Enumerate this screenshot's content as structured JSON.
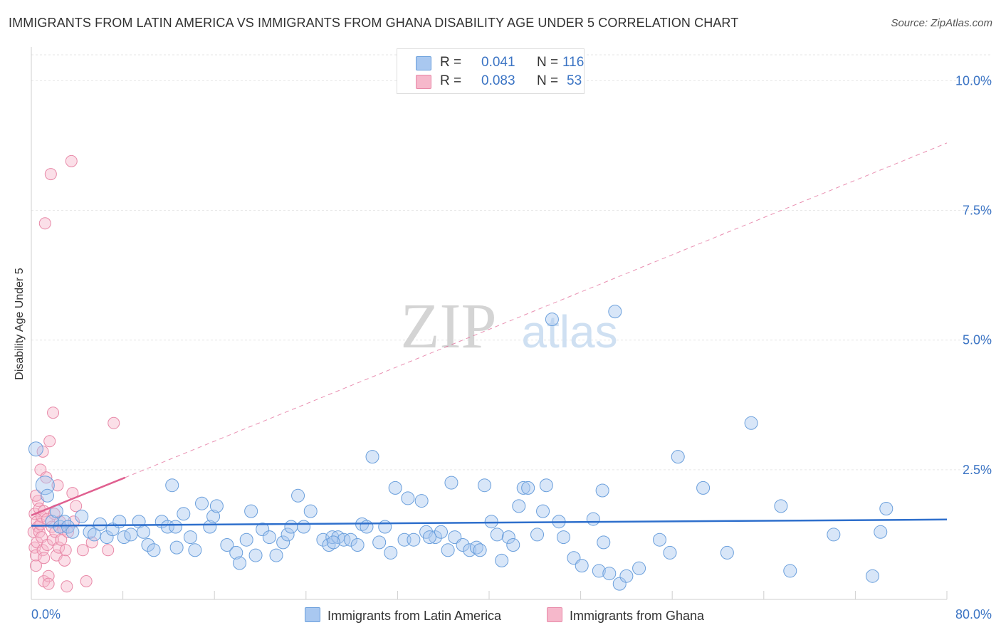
{
  "title": "IMMIGRANTS FROM LATIN AMERICA VS IMMIGRANTS FROM GHANA DISABILITY AGE UNDER 5 CORRELATION CHART",
  "source": "Source: ZipAtlas.com",
  "watermark": {
    "zip": "ZIP",
    "atlas": "atlas"
  },
  "legend": {
    "r_label": "R =",
    "n_label": "N =",
    "series": [
      {
        "name": "Immigrants from Latin America",
        "r": "0.041",
        "n": "116"
      },
      {
        "name": "Immigrants from Ghana",
        "r": "0.083",
        "n": "53"
      }
    ]
  },
  "colors": {
    "blue_fill": "#a9c8f0",
    "blue_stroke": "#6a9fdc",
    "blue_line": "#2e6fcc",
    "pink_fill": "#f6b8cb",
    "pink_stroke": "#e889a8",
    "pink_line": "#e06090",
    "axis_text": "#3b74c4"
  },
  "chart_data": {
    "type": "scatter",
    "title": "IMMIGRANTS FROM LATIN AMERICA VS IMMIGRANTS FROM GHANA DISABILITY AGE UNDER 5 CORRELATION CHART",
    "xlabel": "",
    "ylabel": "Disability Age Under 5",
    "xlim": [
      0,
      80
    ],
    "ylim": [
      0,
      10.5
    ],
    "x_tick_labels": [
      "0.0%",
      "80.0%"
    ],
    "y_ticks": [
      2.5,
      5.0,
      7.5,
      10.0
    ],
    "y_tick_labels": [
      "2.5%",
      "5.0%",
      "7.5%",
      "10.0%"
    ],
    "grid": true,
    "series": [
      {
        "name": "Immigrants from Latin America",
        "trend": {
          "x0": 0,
          "y0": 1.42,
          "x1": 80,
          "y1": 1.54
        },
        "points": [
          [
            0.4,
            2.9
          ],
          [
            1.2,
            2.2
          ],
          [
            1.4,
            2.0
          ],
          [
            1.8,
            1.5
          ],
          [
            2.2,
            1.7
          ],
          [
            2.5,
            1.4
          ],
          [
            2.9,
            1.5
          ],
          [
            3.2,
            1.4
          ],
          [
            3.6,
            1.3
          ],
          [
            4.4,
            1.6
          ],
          [
            5.1,
            1.3
          ],
          [
            5.5,
            1.25
          ],
          [
            6.0,
            1.45
          ],
          [
            6.6,
            1.2
          ],
          [
            7.1,
            1.35
          ],
          [
            7.7,
            1.5
          ],
          [
            8.1,
            1.2
          ],
          [
            8.7,
            1.25
          ],
          [
            9.4,
            1.5
          ],
          [
            9.8,
            1.3
          ],
          [
            10.2,
            1.05
          ],
          [
            10.7,
            0.95
          ],
          [
            11.4,
            1.5
          ],
          [
            11.9,
            1.4
          ],
          [
            12.3,
            2.2
          ],
          [
            12.7,
            1.0
          ],
          [
            13.3,
            1.65
          ],
          [
            13.9,
            1.2
          ],
          [
            14.3,
            0.95
          ],
          [
            14.9,
            1.85
          ],
          [
            15.6,
            1.4
          ],
          [
            15.9,
            1.6
          ],
          [
            16.2,
            1.8
          ],
          [
            17.1,
            1.05
          ],
          [
            17.9,
            0.9
          ],
          [
            18.2,
            0.7
          ],
          [
            18.8,
            1.15
          ],
          [
            19.2,
            1.7
          ],
          [
            19.6,
            0.85
          ],
          [
            20.2,
            1.35
          ],
          [
            20.8,
            1.2
          ],
          [
            21.4,
            0.85
          ],
          [
            22.0,
            1.1
          ],
          [
            22.4,
            1.25
          ],
          [
            22.7,
            1.4
          ],
          [
            23.3,
            2.0
          ],
          [
            23.8,
            1.4
          ],
          [
            24.4,
            1.7
          ],
          [
            25.5,
            1.15
          ],
          [
            26.0,
            1.05
          ],
          [
            26.3,
            1.2
          ],
          [
            26.8,
            1.2
          ],
          [
            27.3,
            1.15
          ],
          [
            27.9,
            1.15
          ],
          [
            28.5,
            1.05
          ],
          [
            28.9,
            1.45
          ],
          [
            29.3,
            1.4
          ],
          [
            29.8,
            2.75
          ],
          [
            30.4,
            1.1
          ],
          [
            30.9,
            1.4
          ],
          [
            31.4,
            0.9
          ],
          [
            31.8,
            2.15
          ],
          [
            32.6,
            1.15
          ],
          [
            32.9,
            1.95
          ],
          [
            33.4,
            1.15
          ],
          [
            34.1,
            1.9
          ],
          [
            34.5,
            1.3
          ],
          [
            35.3,
            1.2
          ],
          [
            35.8,
            1.3
          ],
          [
            36.4,
            0.95
          ],
          [
            36.7,
            2.25
          ],
          [
            37.0,
            1.2
          ],
          [
            37.7,
            1.05
          ],
          [
            38.3,
            0.95
          ],
          [
            38.9,
            1.0
          ],
          [
            39.2,
            0.95
          ],
          [
            39.6,
            2.2
          ],
          [
            40.2,
            1.5
          ],
          [
            40.7,
            1.25
          ],
          [
            41.1,
            0.75
          ],
          [
            41.7,
            1.2
          ],
          [
            42.1,
            1.05
          ],
          [
            42.6,
            1.8
          ],
          [
            43.0,
            2.15
          ],
          [
            43.4,
            2.15
          ],
          [
            44.2,
            1.25
          ],
          [
            44.7,
            1.7
          ],
          [
            45.0,
            2.2
          ],
          [
            45.5,
            5.4
          ],
          [
            46.1,
            1.5
          ],
          [
            46.5,
            1.2
          ],
          [
            47.4,
            0.8
          ],
          [
            48.1,
            0.65
          ],
          [
            49.1,
            1.55
          ],
          [
            49.6,
            0.55
          ],
          [
            49.9,
            2.1
          ],
          [
            50.5,
            0.5
          ],
          [
            51.0,
            5.55
          ],
          [
            51.4,
            0.3
          ],
          [
            52.0,
            0.45
          ],
          [
            53.1,
            0.6
          ],
          [
            54.9,
            1.15
          ],
          [
            55.8,
            0.9
          ],
          [
            56.5,
            2.75
          ],
          [
            58.7,
            2.15
          ],
          [
            60.8,
            0.9
          ],
          [
            62.9,
            3.4
          ],
          [
            65.5,
            1.8
          ],
          [
            66.3,
            0.55
          ],
          [
            70.1,
            1.25
          ],
          [
            73.5,
            0.45
          ],
          [
            74.2,
            1.3
          ],
          [
            74.7,
            1.75
          ],
          [
            50.0,
            1.1
          ],
          [
            26.4,
            1.1
          ],
          [
            12.6,
            1.4
          ],
          [
            34.8,
            1.2
          ]
        ]
      },
      {
        "name": "Immigrants from Ghana",
        "trend": {
          "x0": 0,
          "y0": 1.62,
          "x1": 8.2,
          "y1": 2.35,
          "x1_extended": 80,
          "y1_extended": 8.8
        },
        "points": [
          [
            0.2,
            1.3
          ],
          [
            0.3,
            1.65
          ],
          [
            0.3,
            1.0
          ],
          [
            0.4,
            0.85
          ],
          [
            0.4,
            0.65
          ],
          [
            0.5,
            1.5
          ],
          [
            0.5,
            1.1
          ],
          [
            0.6,
            1.4
          ],
          [
            0.6,
            1.9
          ],
          [
            0.7,
            1.75
          ],
          [
            0.7,
            1.3
          ],
          [
            0.8,
            2.5
          ],
          [
            0.8,
            1.45
          ],
          [
            0.9,
            1.6
          ],
          [
            0.9,
            1.2
          ],
          [
            1.0,
            2.85
          ],
          [
            1.0,
            0.95
          ],
          [
            1.1,
            1.7
          ],
          [
            1.1,
            0.8
          ],
          [
            1.1,
            0.35
          ],
          [
            1.2,
            7.25
          ],
          [
            1.3,
            2.35
          ],
          [
            1.4,
            1.55
          ],
          [
            1.4,
            1.05
          ],
          [
            1.5,
            0.45
          ],
          [
            1.5,
            0.3
          ],
          [
            1.6,
            3.05
          ],
          [
            1.7,
            8.2
          ],
          [
            1.8,
            1.4
          ],
          [
            1.9,
            3.6
          ],
          [
            1.9,
            1.15
          ],
          [
            2.0,
            1.65
          ],
          [
            2.1,
            1.3
          ],
          [
            2.2,
            0.85
          ],
          [
            2.3,
            2.2
          ],
          [
            2.4,
            1.0
          ],
          [
            2.5,
            1.5
          ],
          [
            2.6,
            1.15
          ],
          [
            2.8,
            1.35
          ],
          [
            2.9,
            0.75
          ],
          [
            3.0,
            0.95
          ],
          [
            3.1,
            0.25
          ],
          [
            3.2,
            1.3
          ],
          [
            3.5,
            8.45
          ],
          [
            3.6,
            2.05
          ],
          [
            3.7,
            1.5
          ],
          [
            3.9,
            1.8
          ],
          [
            4.5,
            0.95
          ],
          [
            4.8,
            0.35
          ],
          [
            5.3,
            1.1
          ],
          [
            6.7,
            0.95
          ],
          [
            7.2,
            3.4
          ],
          [
            0.4,
            2.0
          ]
        ]
      }
    ]
  }
}
